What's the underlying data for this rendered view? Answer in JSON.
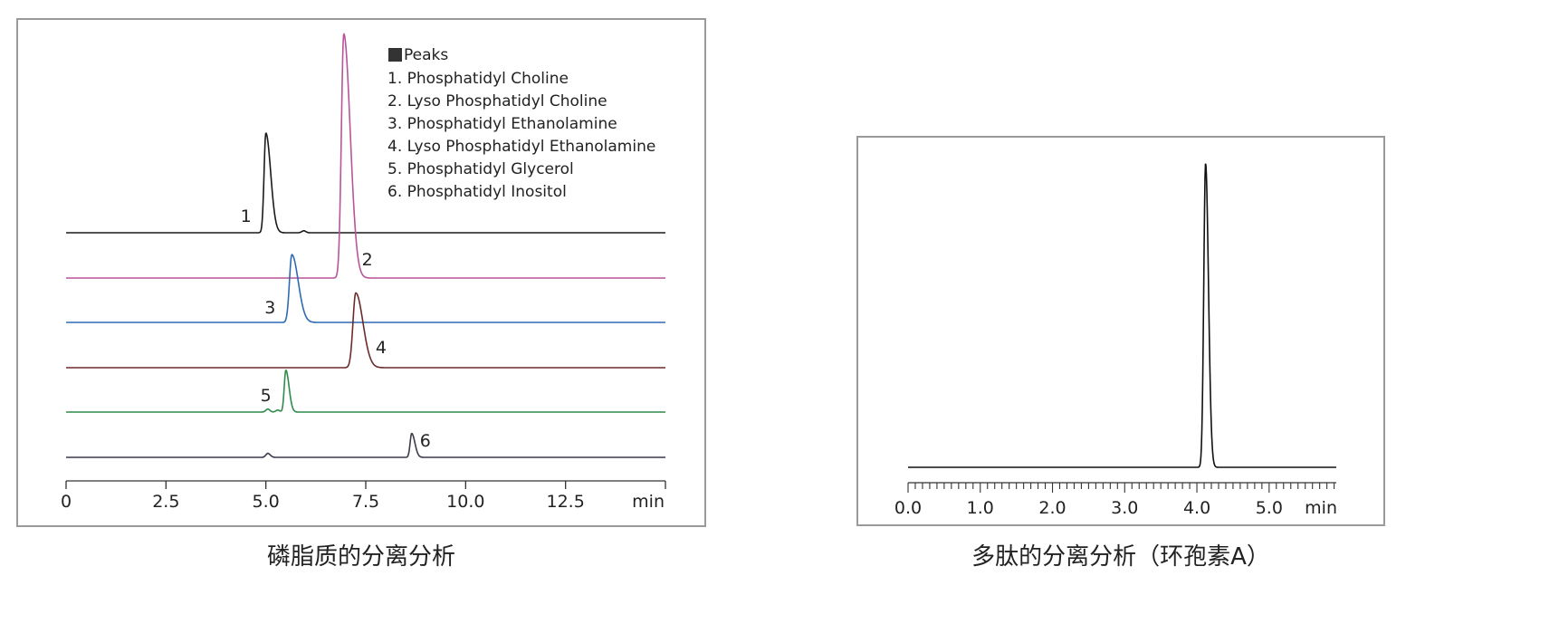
{
  "chart_data": [
    {
      "type": "line",
      "caption": "磷脂质的分离分析",
      "x_unit": "min",
      "x_ticks": [
        "0",
        "2.5",
        "5.0",
        "7.5",
        "10.0",
        "12.5"
      ],
      "xlim": [
        0,
        15
      ],
      "legend": {
        "title": "Peaks",
        "entries": [
          "1. Phosphatidyl Choline",
          "2. Lyso Phosphatidyl Choline",
          "3. Phosphatidyl Ethanolamine",
          "4. Lyso Phosphatidyl Ethanolamine",
          "5. Phosphatidyl Glycerol",
          "6. Phosphatidyl Inositol"
        ],
        "placement": "top-right"
      },
      "series": [
        {
          "label": "1",
          "color": "#1a1a1a",
          "peaks": [
            {
              "t": 5.0,
              "h": 1.0,
              "w": 0.045,
              "tail": 0.12
            },
            {
              "t": 5.95,
              "h": 0.02,
              "w": 0.05,
              "tail": 0.05
            }
          ]
        },
        {
          "label": "2",
          "color": "#b8549b",
          "peaks": [
            {
              "t": 6.95,
              "h": 2.45,
              "w": 0.06,
              "tail": 0.16
            }
          ]
        },
        {
          "label": "3",
          "color": "#2e6ab3",
          "peaks": [
            {
              "t": 5.65,
              "h": 0.68,
              "w": 0.06,
              "tail": 0.16
            }
          ]
        },
        {
          "label": "4",
          "color": "#6b2b2b",
          "peaks": [
            {
              "t": 7.25,
              "h": 0.75,
              "w": 0.07,
              "tail": 0.18
            }
          ]
        },
        {
          "label": "5",
          "color": "#2e8b4a",
          "peaks": [
            {
              "t": 5.5,
              "h": 0.42,
              "w": 0.04,
              "tail": 0.08
            },
            {
              "t": 5.05,
              "h": 0.03,
              "w": 0.05,
              "tail": 0.05
            },
            {
              "t": 5.3,
              "h": 0.02,
              "w": 0.05,
              "tail": 0.05
            }
          ]
        },
        {
          "label": "6",
          "color": "#3a3a4a",
          "peaks": [
            {
              "t": 8.65,
              "h": 0.24,
              "w": 0.04,
              "tail": 0.08
            },
            {
              "t": 5.05,
              "h": 0.04,
              "w": 0.05,
              "tail": 0.06
            }
          ]
        }
      ]
    },
    {
      "type": "line",
      "caption": "多肽的分离分析（环孢素A）",
      "x_unit": "min",
      "x_ticks": [
        "0.0",
        "1.0",
        "2.0",
        "3.0",
        "4.0",
        "5.0"
      ],
      "xlim": [
        0,
        6
      ],
      "series": [
        {
          "color": "#111111",
          "peaks": [
            {
              "t": 4.12,
              "h": 1.0,
              "w": 0.025,
              "tail": 0.04
            }
          ]
        }
      ]
    }
  ]
}
